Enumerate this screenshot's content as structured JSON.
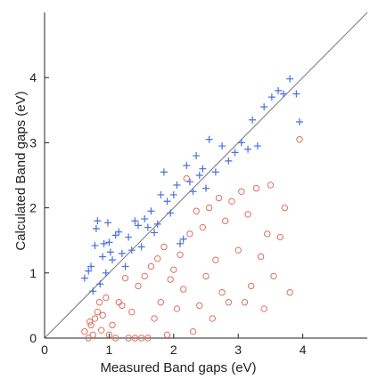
{
  "chart_data": {
    "type": "scatter",
    "title": "",
    "xlabel": "Measured Band gaps (eV)",
    "ylabel": "Calculated Band gaps (eV)",
    "xlim": [
      0,
      5
    ],
    "ylim": [
      0,
      5
    ],
    "x_ticks": [
      "0",
      "1",
      "2",
      "3",
      "4"
    ],
    "y_ticks": [
      "0",
      "1",
      "2",
      "3",
      "4"
    ],
    "grid": false,
    "legend": "none",
    "reference_line": "y = x",
    "colors": {
      "series_plus": "#4a6fe0",
      "series_circle": "#e07060",
      "reference_line": "#777777",
      "axes": "#222222"
    },
    "series": [
      {
        "marker": "plus",
        "points": [
          [
            0.62,
            0.92
          ],
          [
            0.68,
            1.03
          ],
          [
            0.72,
            1.1
          ],
          [
            0.75,
            0.72
          ],
          [
            0.78,
            1.42
          ],
          [
            0.8,
            1.68
          ],
          [
            0.82,
            1.8
          ],
          [
            0.86,
            0.83
          ],
          [
            0.9,
            1.25
          ],
          [
            0.92,
            1.45
          ],
          [
            0.95,
            1.0
          ],
          [
            0.98,
            1.77
          ],
          [
            1.0,
            1.47
          ],
          [
            1.02,
            1.32
          ],
          [
            1.05,
            1.2
          ],
          [
            1.1,
            1.58
          ],
          [
            1.15,
            1.63
          ],
          [
            1.2,
            1.3
          ],
          [
            1.25,
            1.1
          ],
          [
            1.3,
            1.55
          ],
          [
            1.35,
            1.35
          ],
          [
            1.4,
            1.8
          ],
          [
            1.45,
            1.73
          ],
          [
            1.5,
            1.4
          ],
          [
            1.55,
            1.83
          ],
          [
            1.6,
            1.7
          ],
          [
            1.65,
            1.95
          ],
          [
            1.7,
            1.62
          ],
          [
            1.75,
            1.75
          ],
          [
            1.8,
            2.2
          ],
          [
            1.85,
            2.55
          ],
          [
            1.9,
            2.1
          ],
          [
            1.95,
            1.92
          ],
          [
            2.0,
            2.2
          ],
          [
            2.05,
            2.35
          ],
          [
            2.1,
            1.45
          ],
          [
            2.15,
            1.52
          ],
          [
            2.2,
            2.65
          ],
          [
            2.25,
            2.4
          ],
          [
            2.3,
            2.25
          ],
          [
            2.35,
            2.8
          ],
          [
            2.4,
            2.5
          ],
          [
            2.45,
            2.6
          ],
          [
            2.5,
            2.3
          ],
          [
            2.55,
            3.05
          ],
          [
            2.65,
            2.55
          ],
          [
            2.75,
            2.95
          ],
          [
            2.85,
            2.72
          ],
          [
            2.95,
            2.85
          ],
          [
            3.05,
            3.0
          ],
          [
            3.15,
            2.9
          ],
          [
            3.22,
            3.35
          ],
          [
            3.3,
            2.95
          ],
          [
            3.4,
            3.55
          ],
          [
            3.52,
            3.7
          ],
          [
            3.62,
            3.8
          ],
          [
            3.7,
            3.75
          ],
          [
            3.8,
            3.98
          ],
          [
            3.9,
            3.75
          ],
          [
            3.95,
            3.32
          ]
        ]
      },
      {
        "marker": "circle",
        "points": [
          [
            0.62,
            0.1
          ],
          [
            0.68,
            0.0
          ],
          [
            0.7,
            0.25
          ],
          [
            0.72,
            0.2
          ],
          [
            0.75,
            0.05
          ],
          [
            0.78,
            0.3
          ],
          [
            0.82,
            0.4
          ],
          [
            0.85,
            0.55
          ],
          [
            0.88,
            0.12
          ],
          [
            0.9,
            0.35
          ],
          [
            0.95,
            0.62
          ],
          [
            1.0,
            0.05
          ],
          [
            1.05,
            0.2
          ],
          [
            1.1,
            0.0
          ],
          [
            1.15,
            0.55
          ],
          [
            1.2,
            0.5
          ],
          [
            1.25,
            0.92
          ],
          [
            1.3,
            0.0
          ],
          [
            1.35,
            0.4
          ],
          [
            1.4,
            0.0
          ],
          [
            1.45,
            0.8
          ],
          [
            1.5,
            0.0
          ],
          [
            1.55,
            0.95
          ],
          [
            1.6,
            0.0
          ],
          [
            1.65,
            1.1
          ],
          [
            1.7,
            0.3
          ],
          [
            1.75,
            1.22
          ],
          [
            1.8,
            0.55
          ],
          [
            1.85,
            1.4
          ],
          [
            1.9,
            0.05
          ],
          [
            1.95,
            0.9
          ],
          [
            2.0,
            1.05
          ],
          [
            2.05,
            0.45
          ],
          [
            2.1,
            1.28
          ],
          [
            2.15,
            0.75
          ],
          [
            2.2,
            2.45
          ],
          [
            2.25,
            1.6
          ],
          [
            2.3,
            0.1
          ],
          [
            2.35,
            1.95
          ],
          [
            2.4,
            0.5
          ],
          [
            2.45,
            1.7
          ],
          [
            2.5,
            0.95
          ],
          [
            2.55,
            2.0
          ],
          [
            2.6,
            0.3
          ],
          [
            2.65,
            1.2
          ],
          [
            2.7,
            2.15
          ],
          [
            2.75,
            0.7
          ],
          [
            2.8,
            1.8
          ],
          [
            2.85,
            0.55
          ],
          [
            2.9,
            2.1
          ],
          [
            3.0,
            1.35
          ],
          [
            3.05,
            2.25
          ],
          [
            3.1,
            0.55
          ],
          [
            3.15,
            1.9
          ],
          [
            3.2,
            0.8
          ],
          [
            3.28,
            2.3
          ],
          [
            3.35,
            1.25
          ],
          [
            3.4,
            0.45
          ],
          [
            3.45,
            1.6
          ],
          [
            3.5,
            2.35
          ],
          [
            3.55,
            0.95
          ],
          [
            3.65,
            1.55
          ],
          [
            3.72,
            2.0
          ],
          [
            3.8,
            0.7
          ],
          [
            3.95,
            3.05
          ]
        ]
      }
    ]
  }
}
